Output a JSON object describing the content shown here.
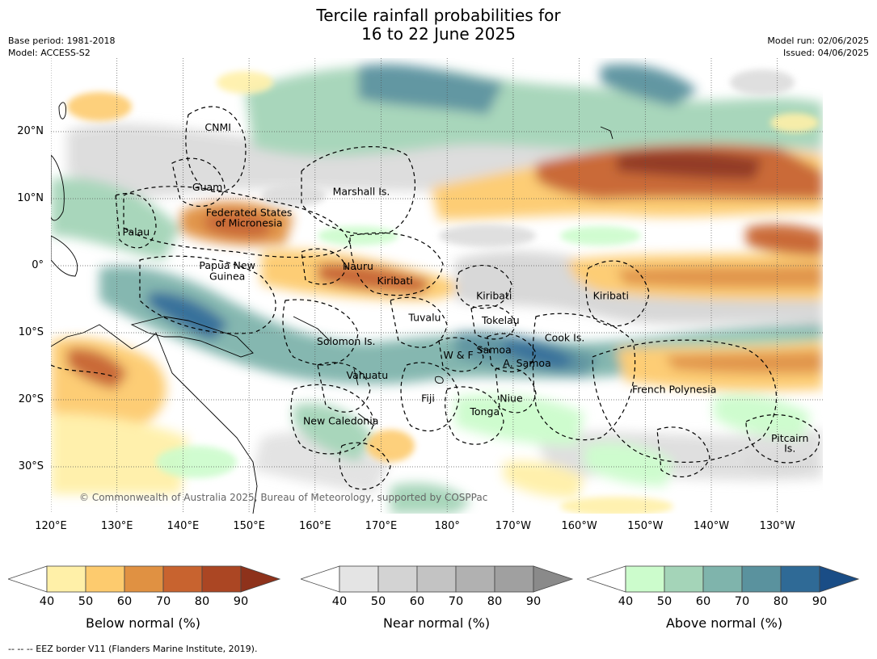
{
  "title_line1": "Tercile rainfall probabilities for",
  "title_line2": "16 to 22 June 2025",
  "meta_left": [
    "Base period: 1981-2018",
    "Model: ACCESS-S2"
  ],
  "meta_right": [
    "Model run: 02/06/2025",
    "Issued: 04/06/2025"
  ],
  "map": {
    "lat_ticks": [
      "20°N",
      "10°N",
      "0°",
      "10°S",
      "20°S",
      "30°S"
    ],
    "lon_ticks": [
      "120°E",
      "130°E",
      "140°E",
      "150°E",
      "160°E",
      "170°E",
      "180°",
      "170°W",
      "160°W",
      "150°W",
      "140°W",
      "130°W"
    ],
    "countries": [
      {
        "name": "CNMI",
        "lon": 145.3,
        "lat": 20.6
      },
      {
        "name": "Guam",
        "lon": 143.7,
        "lat": 11.7
      },
      {
        "name": "Marshall Is.",
        "lon": 167.0,
        "lat": 11.0
      },
      {
        "name": "Federated States",
        "lon": 150.0,
        "lat": 7.9
      },
      {
        "name": "of Micronesia",
        "lon": 150.0,
        "lat": 6.3
      },
      {
        "name": "Palau",
        "lon": 132.9,
        "lat": 5.0
      },
      {
        "name": "Papua New",
        "lon": 146.7,
        "lat": 0.0
      },
      {
        "name": "Guinea",
        "lon": 146.7,
        "lat": -1.6
      },
      {
        "name": "Nauru",
        "lon": 166.5,
        "lat": -0.1
      },
      {
        "name": "Kiribati",
        "lon": 172.1,
        "lat": -2.3
      },
      {
        "name": "Kiribati",
        "lon": -172.9,
        "lat": -4.5
      },
      {
        "name": "Kiribati",
        "lon": -155.2,
        "lat": -4.5
      },
      {
        "name": "Tuvalu",
        "lon": 176.6,
        "lat": -7.8
      },
      {
        "name": "Tokelau",
        "lon": -171.9,
        "lat": -8.2
      },
      {
        "name": "Cook Is.",
        "lon": -162.2,
        "lat": -10.8
      },
      {
        "name": "Solomon Is.",
        "lon": 164.7,
        "lat": -11.3
      },
      {
        "name": "Samoa",
        "lon": -172.9,
        "lat": -12.6
      },
      {
        "name": "W & F",
        "lon": -178.3,
        "lat": -13.4
      },
      {
        "name": "A. Samoa",
        "lon": -167.9,
        "lat": -14.6
      },
      {
        "name": "Vanuatu",
        "lon": 167.9,
        "lat": -16.4
      },
      {
        "name": "French Polynesia",
        "lon": -145.6,
        "lat": -18.5
      },
      {
        "name": "Fiji",
        "lon": 177.1,
        "lat": -19.8
      },
      {
        "name": "Niue",
        "lon": -170.3,
        "lat": -19.8
      },
      {
        "name": "Tonga",
        "lon": -174.3,
        "lat": -21.8
      },
      {
        "name": "New Caledonia",
        "lon": 163.9,
        "lat": -23.2
      },
      {
        "name": "Pitcairn",
        "lon": -128.1,
        "lat": -25.8
      },
      {
        "name": "Is.",
        "lon": -128.1,
        "lat": -27.3
      }
    ],
    "copyright": "© Commonwealth of Australia 2025, Bureau of Meteorology, supported by COSPPac",
    "colors": {
      "ocean": "#ffffff",
      "land_line": "#000000",
      "grid": "#555555",
      "eez": "#000000"
    }
  },
  "legends": [
    {
      "label": "Below normal (%)",
      "ticks": [
        "40",
        "50",
        "60",
        "70",
        "80",
        "90"
      ],
      "colors": [
        "#ffffff",
        "#fff0a8",
        "#fdcb6e",
        "#e09142",
        "#c8632f",
        "#ab4623",
        "#8e321b"
      ]
    },
    {
      "label": "Near normal (%)",
      "ticks": [
        "40",
        "50",
        "60",
        "70",
        "80",
        "90"
      ],
      "colors": [
        "#ffffff",
        "#e4e4e4",
        "#d3d3d3",
        "#c3c3c3",
        "#b1b1b1",
        "#a0a0a0",
        "#8a8a8a"
      ]
    },
    {
      "label": "Above normal (%)",
      "ticks": [
        "40",
        "50",
        "60",
        "70",
        "80",
        "90"
      ],
      "colors": [
        "#ffffff",
        "#ccfccc",
        "#a4d4b8",
        "#7fb4ac",
        "#5a929e",
        "#2f6a96",
        "#1a4d86"
      ]
    }
  ],
  "footnote": "-- -- -- EEZ border V11 (Flanders Marine Institute, 2019)."
}
